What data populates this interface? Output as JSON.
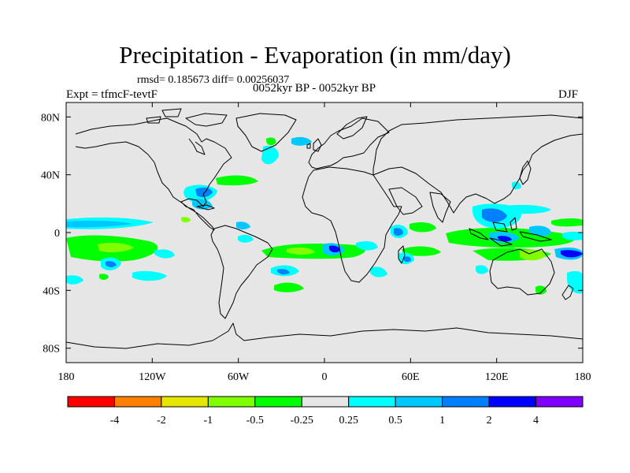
{
  "title": "Precipitation - Evaporation (in mm/day)",
  "stats": "rmsd= 0.185673 diff= 0.00256037",
  "experiment": "Expt = tfmcF-tevtF",
  "period": "0052kyr BP - 0052kyr BP",
  "season": "DJF",
  "lat_labels": [
    "80N",
    "40N",
    "0",
    "40S",
    "80S"
  ],
  "lat_values": [
    80,
    40,
    0,
    -40,
    -80
  ],
  "lon_labels": [
    "180",
    "120W",
    "60W",
    "0",
    "60E",
    "120E",
    "180"
  ],
  "lon_values": [
    -180,
    -120,
    -60,
    0,
    60,
    120,
    180
  ],
  "colorbar": {
    "labels": [
      "-4",
      "-2",
      "-1",
      "-0.5",
      "-0.25",
      "0.25",
      "0.5",
      "1",
      "2",
      "4"
    ],
    "colors": [
      "#ff0000",
      "#ff8000",
      "#e6e600",
      "#80ff00",
      "#00ff00",
      "#e6e6e6",
      "#00ffff",
      "#00c8ff",
      "#0080ff",
      "#0000ff",
      "#8000ff"
    ]
  },
  "colors": {
    "land_ocean_background": "#e6e6e6",
    "coastline": "#000000"
  }
}
